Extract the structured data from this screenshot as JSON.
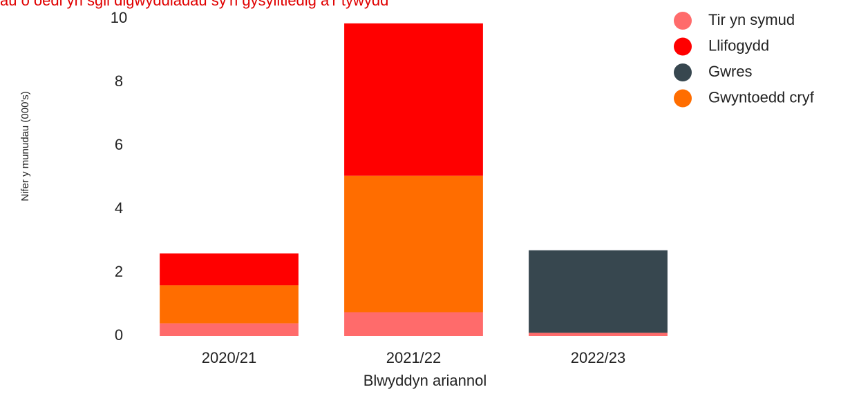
{
  "chart_data": {
    "type": "bar",
    "stacked": true,
    "title": "au o oedi yn sgil digwyddiadau sy'n gysylltiedig â'r tywydd",
    "x_label": "Blwyddyn ariannol",
    "y_label": "Nifer y munudau  (000's)",
    "categories": [
      "2020/21",
      "2021/22",
      "2022/23"
    ],
    "series": [
      {
        "name": "Tir yn symud",
        "color": "#ff6b6b",
        "values": [
          0.4,
          0.75,
          0.1
        ]
      },
      {
        "name": "Llifogydd",
        "color": "#ff0000",
        "values": [
          1.0,
          4.8,
          0
        ]
      },
      {
        "name": "Gwres",
        "color": "#37474f",
        "values": [
          0,
          0,
          2.6
        ]
      },
      {
        "name": "Gwyntoedd cryf",
        "color": "#ff6d00",
        "values": [
          1.2,
          4.3,
          0
        ]
      }
    ],
    "ylim": [
      0,
      10
    ],
    "yticks": [
      0,
      2,
      4,
      6,
      8,
      10
    ],
    "grid": false,
    "legend": "top-right"
  }
}
